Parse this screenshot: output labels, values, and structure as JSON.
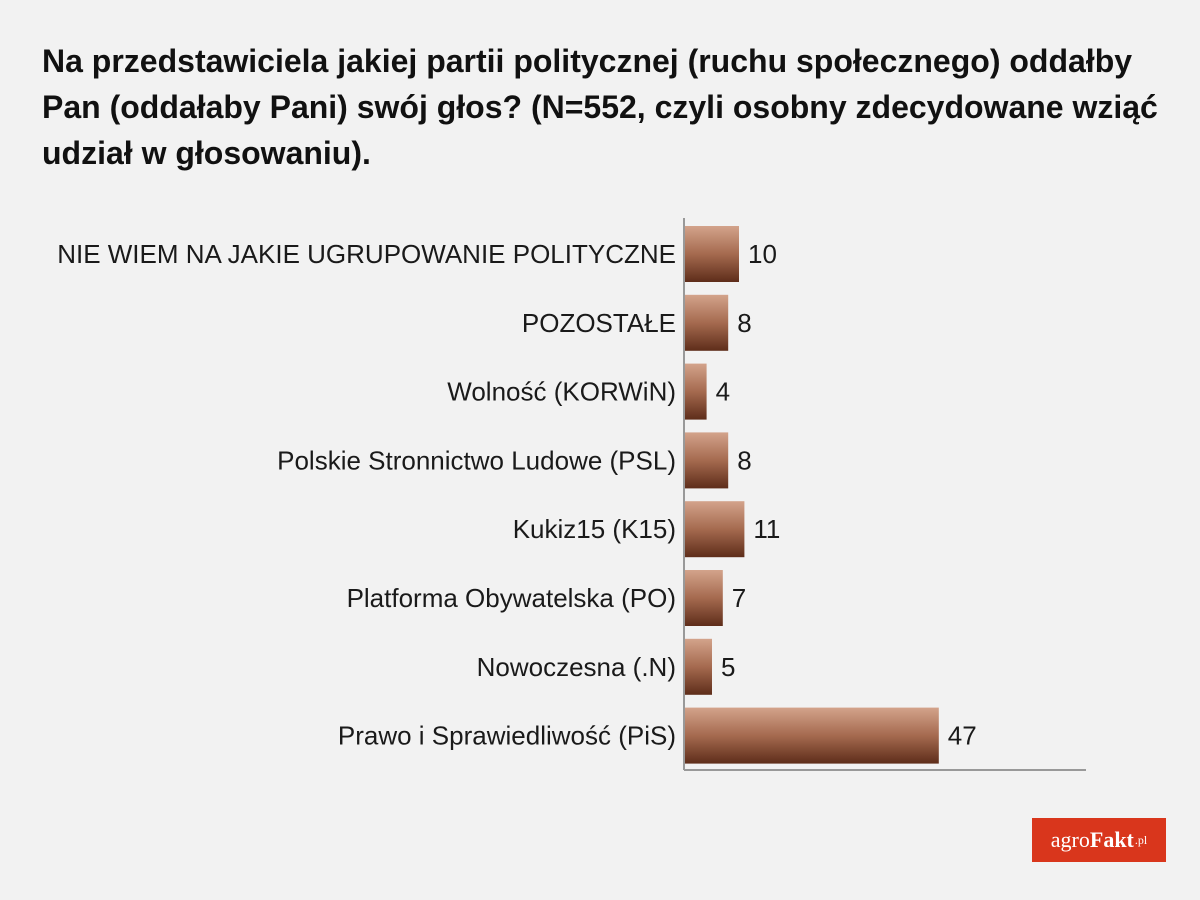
{
  "title": "Na przedstawiciela jakiej partii politycznej (ruchu społecznego) oddałby Pan (oddałaby Pani) swój głos? (N=552, czyli osobny zdecydowane wziąć udział w głosowaniu).",
  "logo": {
    "agro": "agro",
    "fakt": "Fakt",
    "pl": ".pl"
  },
  "colors": {
    "bar_light": "#d3a38b",
    "bar_mid": "#a56a4f",
    "bar_dark": "#5e2d1a",
    "axis": "#999999",
    "logo_bg": "#d9361c"
  },
  "chart_data": {
    "type": "bar",
    "orientation": "horizontal",
    "categories": [
      "NIE WIEM NA JAKIE UGRUPOWANIE POLITYCZNE",
      "POZOSTAŁE",
      "Wolność (KORWiN)",
      "Polskie Stronnictwo Ludowe (PSL)",
      "Kukiz15 (K15)",
      "Platforma Obywatelska (PO)",
      "Nowoczesna (.N)",
      "Prawo i Sprawiedliwość (PiS)"
    ],
    "values": [
      10,
      8,
      4,
      8,
      11,
      7,
      5,
      47
    ],
    "data_labels": [
      "10",
      "8",
      "4",
      "8",
      "11",
      "7",
      "5",
      "47"
    ],
    "xlim": [
      0,
      75
    ],
    "grid": false,
    "legend": "none"
  }
}
